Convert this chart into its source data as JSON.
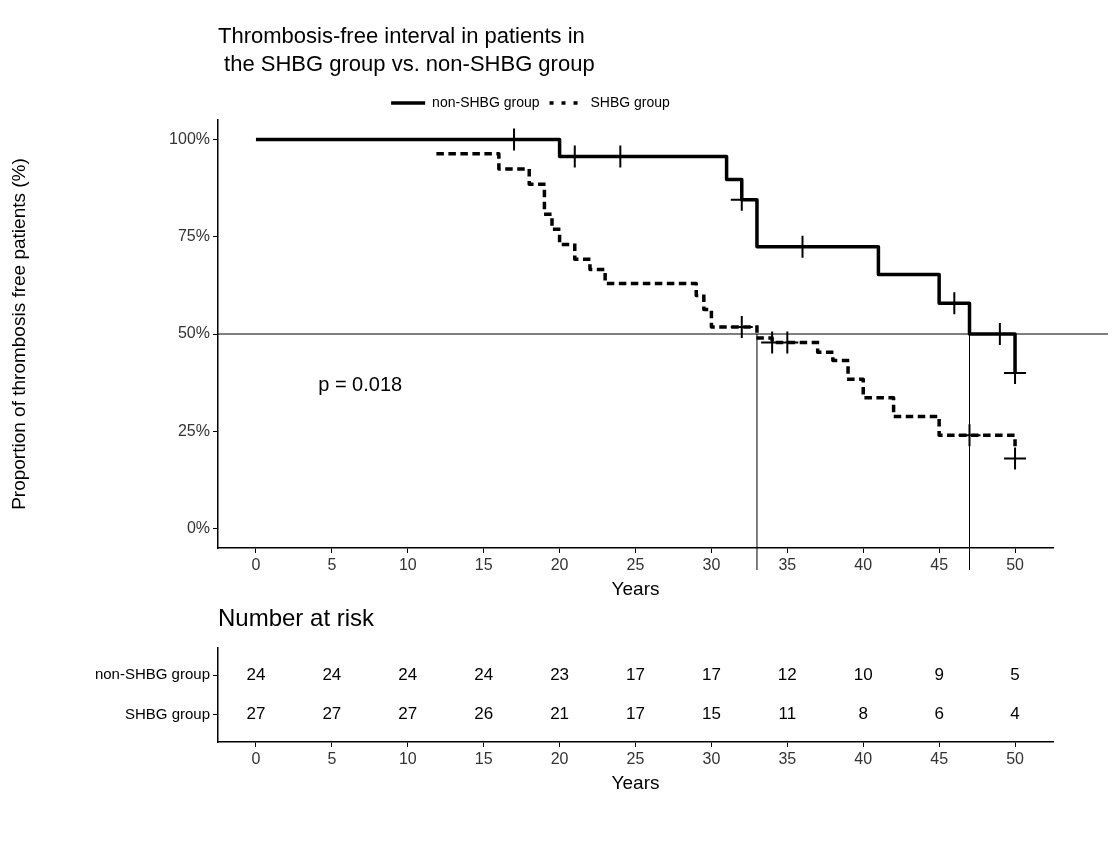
{
  "chart_data": [
    {
      "type": "step",
      "title": "Thrombosis-free interval in patients in\n the SHBG group vs. non-SHBG group",
      "xlabel": "Years",
      "ylabel": "Proportion of thrombosis free patients (%)",
      "xlim": [
        -2.5,
        52.5
      ],
      "xticks": [
        0,
        5,
        10,
        15,
        20,
        25,
        30,
        35,
        40,
        45,
        50
      ],
      "ylim": [
        -5,
        105
      ],
      "yticks": [
        {
          "value": 0,
          "label": "0%"
        },
        {
          "value": 25,
          "label": "25%"
        },
        {
          "value": 50,
          "label": "50%"
        },
        {
          "value": 75,
          "label": "75%"
        },
        {
          "value": 100,
          "label": "100%"
        }
      ],
      "grid": false,
      "legend": "top",
      "series": [
        {
          "name": "non-SHBG group",
          "color": "#000000",
          "line_style": "solid",
          "marker": "none",
          "x": [
            0,
            20,
            31,
            32,
            33,
            41,
            45,
            47,
            50
          ],
          "values": [
            100,
            95.6,
            89.7,
            84.5,
            72.4,
            65.3,
            57.9,
            50,
            40
          ]
        },
        {
          "name": "SHBG group",
          "color": "#000000",
          "line_style": "dotted",
          "marker": "none",
          "x": [
            12,
            16,
            18,
            19,
            19.5,
            20,
            21,
            22,
            23,
            29,
            29.5,
            30,
            33,
            34,
            37,
            38,
            39,
            40,
            42,
            45,
            50
          ],
          "values": [
            96.3,
            92.4,
            88.5,
            80.8,
            76.9,
            73,
            69.2,
            66.6,
            63,
            59.9,
            56.3,
            51.8,
            49,
            47.8,
            45.3,
            43.2,
            38.4,
            33.6,
            28.8,
            24,
            21.6
          ]
        },
        {
          "type": "scatter",
          "color": "#000000",
          "marker": "cross",
          "x": [
            17,
            21,
            24,
            32,
            36,
            46,
            49,
            50
          ],
          "values": [
            100,
            95.6,
            95.6,
            84.5,
            72.4,
            57.9,
            50,
            40
          ]
        },
        {
          "type": "scatter",
          "color": "#000000",
          "marker": "cross",
          "x": [
            32,
            34,
            35,
            47,
            50
          ],
          "values": [
            51.8,
            47.8,
            47.8,
            24,
            18
          ]
        }
      ],
      "ref_lines": [
        {
          "axis": "y",
          "value": 50
        },
        {
          "axis": "x",
          "value": 33
        },
        {
          "axis": "x",
          "value": 47
        }
      ],
      "annotations": [
        "p = 0.018"
      ]
    },
    {
      "type": "heatmap",
      "title": "Number at risk",
      "data_labels": true,
      "xlabel": "Years",
      "categories": [
        "0",
        "5",
        "10",
        "15",
        "20",
        "25",
        "30",
        "35",
        "40",
        "45",
        "50"
      ],
      "y_categories": [
        "non-SHBG group",
        "SHBG group"
      ],
      "cells": [
        [
          24,
          24,
          24,
          24,
          23,
          17,
          17,
          12,
          10,
          9,
          5
        ],
        [
          27,
          27,
          27,
          26,
          21,
          17,
          15,
          11,
          8,
          6,
          4
        ]
      ]
    }
  ]
}
